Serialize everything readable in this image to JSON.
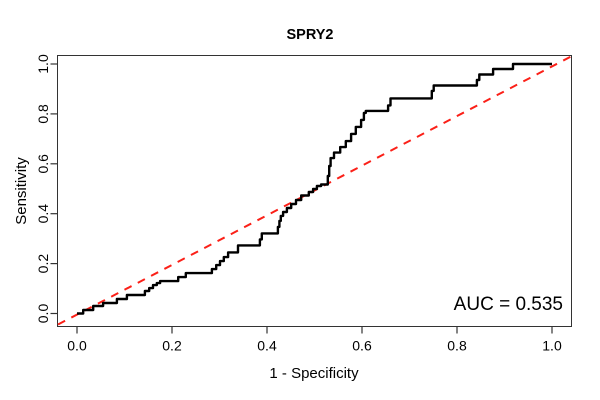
{
  "window": {
    "title": "SPRY2 ROC curve figure"
  },
  "chart_data": {
    "type": "line",
    "subtype": "roc-step-curve",
    "title": "SPRY2",
    "xlabel": "1 - Specificity",
    "ylabel": "Sensitivity",
    "auc": 0.535,
    "auc_label": "AUC = 0.535",
    "xlim": [
      0,
      1
    ],
    "ylim": [
      0,
      1
    ],
    "x_ticks": [
      0.0,
      0.2,
      0.4,
      0.6,
      0.8,
      1.0
    ],
    "y_ticks": [
      0.0,
      0.2,
      0.4,
      0.6,
      0.8,
      1.0
    ],
    "x_tick_labels": [
      "0.0",
      "0.2",
      "0.4",
      "0.6",
      "0.8",
      "1.0"
    ],
    "y_tick_labels": [
      "0.0",
      "0.2",
      "0.4",
      "0.6",
      "0.8",
      "1.0"
    ],
    "grid": false,
    "legend": "none",
    "colors": {
      "roc_curve": "#000000",
      "diagonal": "#FB2018",
      "axis": "#333333",
      "text": "#000000",
      "background": "#FFFFFF"
    },
    "diagonal": {
      "style": "dashed",
      "from": [
        0,
        0
      ],
      "to": [
        1,
        1
      ]
    },
    "annotation": {
      "text": "AUC = 0.535",
      "anchor": "end",
      "x": 1.025,
      "y": 0.015
    },
    "series": [
      {
        "name": "ROC step curve (SPRY2)",
        "points": [
          [
            0.0,
            0.0
          ],
          [
            0.013,
            0.0
          ],
          [
            0.013,
            0.014
          ],
          [
            0.034,
            0.014
          ],
          [
            0.034,
            0.03
          ],
          [
            0.055,
            0.03
          ],
          [
            0.055,
            0.042
          ],
          [
            0.084,
            0.042
          ],
          [
            0.084,
            0.058
          ],
          [
            0.105,
            0.058
          ],
          [
            0.105,
            0.074
          ],
          [
            0.143,
            0.074
          ],
          [
            0.143,
            0.09
          ],
          [
            0.152,
            0.09
          ],
          [
            0.152,
            0.102
          ],
          [
            0.16,
            0.102
          ],
          [
            0.16,
            0.114
          ],
          [
            0.168,
            0.114
          ],
          [
            0.168,
            0.122
          ],
          [
            0.175,
            0.122
          ],
          [
            0.175,
            0.13
          ],
          [
            0.213,
            0.13
          ],
          [
            0.213,
            0.146
          ],
          [
            0.229,
            0.146
          ],
          [
            0.229,
            0.162
          ],
          [
            0.284,
            0.162
          ],
          [
            0.284,
            0.178
          ],
          [
            0.293,
            0.178
          ],
          [
            0.293,
            0.194
          ],
          [
            0.301,
            0.194
          ],
          [
            0.301,
            0.21
          ],
          [
            0.309,
            0.21
          ],
          [
            0.309,
            0.226
          ],
          [
            0.318,
            0.226
          ],
          [
            0.318,
            0.245
          ],
          [
            0.339,
            0.245
          ],
          [
            0.339,
            0.273
          ],
          [
            0.385,
            0.273
          ],
          [
            0.385,
            0.297
          ],
          [
            0.389,
            0.297
          ],
          [
            0.389,
            0.321
          ],
          [
            0.423,
            0.321
          ],
          [
            0.423,
            0.347
          ],
          [
            0.426,
            0.347
          ],
          [
            0.426,
            0.371
          ],
          [
            0.429,
            0.371
          ],
          [
            0.429,
            0.391
          ],
          [
            0.434,
            0.391
          ],
          [
            0.434,
            0.407
          ],
          [
            0.442,
            0.407
          ],
          [
            0.442,
            0.423
          ],
          [
            0.451,
            0.423
          ],
          [
            0.451,
            0.439
          ],
          [
            0.461,
            0.439
          ],
          [
            0.461,
            0.455
          ],
          [
            0.472,
            0.455
          ],
          [
            0.472,
            0.473
          ],
          [
            0.488,
            0.473
          ],
          [
            0.488,
            0.487
          ],
          [
            0.497,
            0.487
          ],
          [
            0.497,
            0.499
          ],
          [
            0.505,
            0.499
          ],
          [
            0.505,
            0.511
          ],
          [
            0.514,
            0.511
          ],
          [
            0.514,
            0.517
          ],
          [
            0.528,
            0.517
          ],
          [
            0.528,
            0.551
          ],
          [
            0.531,
            0.551
          ],
          [
            0.531,
            0.591
          ],
          [
            0.534,
            0.591
          ],
          [
            0.534,
            0.623
          ],
          [
            0.541,
            0.623
          ],
          [
            0.541,
            0.645
          ],
          [
            0.554,
            0.645
          ],
          [
            0.554,
            0.667
          ],
          [
            0.566,
            0.667
          ],
          [
            0.566,
            0.691
          ],
          [
            0.577,
            0.691
          ],
          [
            0.577,
            0.72
          ],
          [
            0.587,
            0.72
          ],
          [
            0.587,
            0.748
          ],
          [
            0.598,
            0.748
          ],
          [
            0.598,
            0.776
          ],
          [
            0.604,
            0.776
          ],
          [
            0.604,
            0.804
          ],
          [
            0.608,
            0.804
          ],
          [
            0.608,
            0.812
          ],
          [
            0.655,
            0.812
          ],
          [
            0.655,
            0.834
          ],
          [
            0.66,
            0.834
          ],
          [
            0.66,
            0.862
          ],
          [
            0.747,
            0.862
          ],
          [
            0.747,
            0.892
          ],
          [
            0.751,
            0.892
          ],
          [
            0.751,
            0.914
          ],
          [
            0.842,
            0.914
          ],
          [
            0.842,
            0.936
          ],
          [
            0.847,
            0.936
          ],
          [
            0.847,
            0.958
          ],
          [
            0.876,
            0.958
          ],
          [
            0.876,
            0.98
          ],
          [
            0.918,
            0.98
          ],
          [
            0.918,
            1.0
          ],
          [
            1.0,
            1.0
          ]
        ]
      }
    ]
  }
}
